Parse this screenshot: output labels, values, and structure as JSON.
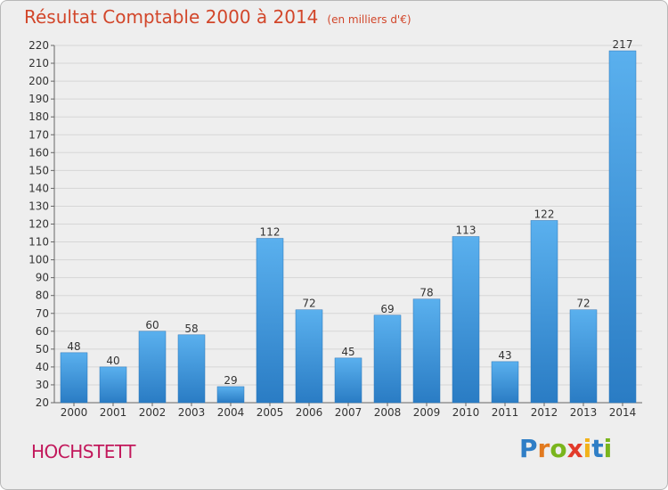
{
  "chart_data": {
    "type": "bar",
    "title": "Résultat Comptable 2000 à 2014",
    "subtitle": "(en milliers d'€)",
    "categories": [
      "2000",
      "2001",
      "2002",
      "2003",
      "2004",
      "2005",
      "2006",
      "2007",
      "2008",
      "2009",
      "2010",
      "2011",
      "2012",
      "2013",
      "2014"
    ],
    "values": [
      48,
      40,
      60,
      58,
      29,
      112,
      72,
      45,
      69,
      78,
      113,
      43,
      122,
      72,
      217
    ],
    "ylim": [
      20,
      220
    ],
    "ytick_step": 10,
    "xlabel": "",
    "ylabel": "",
    "grid": true,
    "bar_color": "#4a9ee0"
  },
  "location": "HOCHSTETT",
  "brand": {
    "name_letters": [
      "P",
      "r",
      "o",
      "x",
      "i",
      "t",
      "i"
    ],
    "letter_colors": [
      "#2f7ec6",
      "#e27a1f",
      "#7ab51d",
      "#e23a2a",
      "#f2b21a",
      "#2f7ec6",
      "#7ab51d"
    ]
  }
}
